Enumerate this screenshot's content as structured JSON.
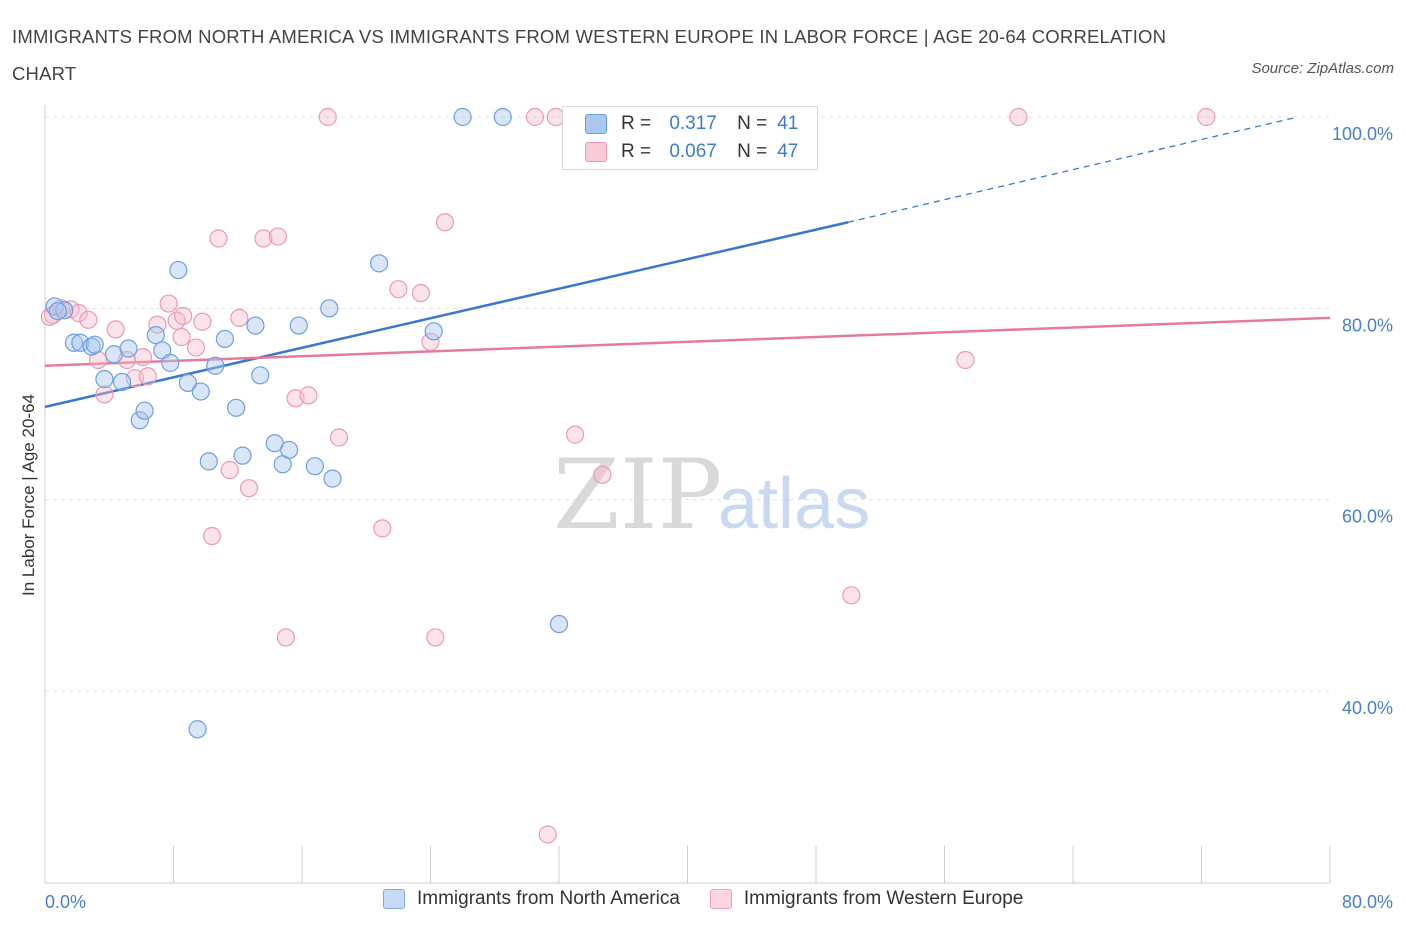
{
  "title": "IMMIGRANTS FROM NORTH AMERICA VS IMMIGRANTS FROM WESTERN EUROPE IN LABOR FORCE | AGE 20-64 CORRELATION CHART",
  "source": "Source: ZipAtlas.com",
  "watermark": {
    "zip": "ZIP",
    "atlas": "atlas"
  },
  "legend": {
    "rows": [
      {
        "r_label": "R =",
        "r_value": "0.317",
        "n_label": "N =",
        "n_value": "41",
        "color": "#a9c8f0"
      },
      {
        "r_label": "R =",
        "r_value": "0.067",
        "n_label": "N =",
        "n_value": "47",
        "color": "#f5b8cb"
      }
    ]
  },
  "bottom_legend": {
    "series1": "Immigrants from North America",
    "series2": "Immigrants from Western Europe"
  },
  "chart_data": {
    "type": "scatter",
    "xlabel": "",
    "ylabel": "In Labor Force | Age 20-64",
    "xlim": [
      0,
      80
    ],
    "ylim": [
      20,
      100
    ],
    "x_tick_labels": [
      "0.0%",
      "80.0%"
    ],
    "y_ticks": [
      40,
      60,
      80,
      100
    ],
    "y_tick_labels": [
      "40.0%",
      "60.0%",
      "80.0%",
      "100.0%"
    ],
    "grid": true,
    "legend_position": "top-center",
    "colors": {
      "series1": "#3a78d0",
      "series2": "#e57a9e",
      "series1_fill": "#a9c8f0",
      "series2_fill": "#f5b8cb"
    },
    "series": [
      {
        "name": "Immigrants from North America",
        "points": [
          [
            0.6,
            80.2
          ],
          [
            1.2,
            79.8
          ],
          [
            1.8,
            76.4
          ],
          [
            2.2,
            76.4
          ],
          [
            2.9,
            76.0
          ],
          [
            3.7,
            72.6
          ],
          [
            4.3,
            75.2
          ],
          [
            4.8,
            72.3
          ],
          [
            5.2,
            75.8
          ],
          [
            5.9,
            68.3
          ],
          [
            6.2,
            69.3
          ],
          [
            6.9,
            77.2
          ],
          [
            7.3,
            75.6
          ],
          [
            7.8,
            74.3
          ],
          [
            8.3,
            84.0
          ],
          [
            8.9,
            72.2
          ],
          [
            9.7,
            71.3
          ],
          [
            10.2,
            64.0
          ],
          [
            10.6,
            74.0
          ],
          [
            11.2,
            76.8
          ],
          [
            11.9,
            69.6
          ],
          [
            12.3,
            64.6
          ],
          [
            13.1,
            78.2
          ],
          [
            13.4,
            73.0
          ],
          [
            14.3,
            65.9
          ],
          [
            14.8,
            63.7
          ],
          [
            15.2,
            65.2
          ],
          [
            15.8,
            78.2
          ],
          [
            16.8,
            63.5
          ],
          [
            17.7,
            80.0
          ],
          [
            17.9,
            62.2
          ],
          [
            20.8,
            84.7
          ],
          [
            24.2,
            77.6
          ],
          [
            26.0,
            100.0
          ],
          [
            28.5,
            100.0
          ],
          [
            32.0,
            47.0
          ],
          [
            34.0,
            100.0
          ],
          [
            47.0,
            100.0
          ],
          [
            9.5,
            36.0
          ],
          [
            0.8,
            79.7
          ],
          [
            3.1,
            76.2
          ]
        ],
        "trend": {
          "x": [
            0,
            50
          ],
          "y": [
            69.7,
            89.0
          ],
          "dashed_extension": {
            "x": [
              50,
              78
            ],
            "y": [
              89.0,
              100.0
            ]
          }
        }
      },
      {
        "name": "Immigrants from Western Europe",
        "points": [
          [
            0.5,
            79.3
          ],
          [
            1.0,
            80.0
          ],
          [
            1.6,
            79.9
          ],
          [
            2.1,
            79.5
          ],
          [
            2.7,
            78.8
          ],
          [
            3.3,
            74.6
          ],
          [
            3.7,
            71.0
          ],
          [
            4.4,
            77.8
          ],
          [
            5.1,
            74.6
          ],
          [
            5.6,
            72.7
          ],
          [
            6.1,
            74.9
          ],
          [
            6.4,
            72.9
          ],
          [
            7.0,
            78.3
          ],
          [
            7.7,
            80.5
          ],
          [
            8.2,
            78.7
          ],
          [
            8.5,
            77.0
          ],
          [
            9.4,
            75.9
          ],
          [
            9.8,
            78.6
          ],
          [
            10.4,
            56.2
          ],
          [
            10.8,
            87.3
          ],
          [
            11.5,
            63.1
          ],
          [
            12.1,
            79.0
          ],
          [
            12.7,
            61.2
          ],
          [
            13.6,
            87.3
          ],
          [
            14.5,
            87.5
          ],
          [
            15.0,
            45.6
          ],
          [
            15.6,
            70.6
          ],
          [
            16.4,
            70.9
          ],
          [
            17.6,
            100.0
          ],
          [
            18.3,
            66.5
          ],
          [
            21.0,
            57.0
          ],
          [
            22.0,
            82.0
          ],
          [
            23.4,
            81.6
          ],
          [
            24.0,
            76.5
          ],
          [
            24.3,
            45.6
          ],
          [
            24.9,
            89.0
          ],
          [
            30.5,
            100.0
          ],
          [
            31.8,
            100.0
          ],
          [
            33.0,
            66.8
          ],
          [
            34.7,
            62.6
          ],
          [
            50.2,
            50.0
          ],
          [
            57.3,
            74.6
          ],
          [
            60.6,
            100.0
          ],
          [
            72.3,
            100.0
          ],
          [
            31.3,
            25.0
          ],
          [
            0.3,
            79.1
          ],
          [
            8.6,
            79.2
          ]
        ],
        "trend": {
          "x": [
            0,
            80
          ],
          "y": [
            74.0,
            79.0
          ]
        }
      }
    ]
  }
}
